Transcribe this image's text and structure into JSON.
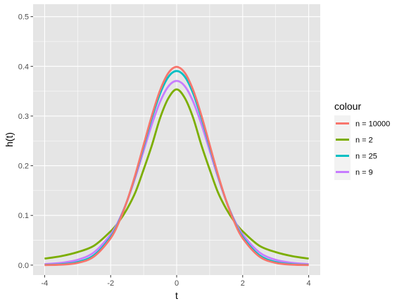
{
  "chart_data": {
    "type": "line",
    "title": "",
    "xlabel": "t",
    "ylabel": "h(t)",
    "xlim": [
      -4.35,
      4.35
    ],
    "ylim": [
      -0.02,
      0.525
    ],
    "x_ticks": [
      -4,
      -2,
      0,
      2,
      4
    ],
    "x_tick_labels": [
      "-4",
      "-2",
      "0",
      "2",
      "4"
    ],
    "y_ticks": [
      0.0,
      0.1,
      0.2,
      0.3,
      0.4,
      0.5
    ],
    "y_tick_labels": [
      "0.0",
      "0.1",
      "0.2",
      "0.3",
      "0.4",
      "0.5"
    ],
    "grid": true,
    "panel_background": "#e5e5e5",
    "grid_color": "#ffffff",
    "legend": {
      "title": "colour",
      "position": "right"
    },
    "x": [
      -4,
      -3.5,
      -3,
      -2.5,
      -2,
      -1.75,
      -1.5,
      -1.25,
      -1,
      -0.75,
      -0.5,
      -0.25,
      0,
      0.25,
      0.5,
      0.75,
      1,
      1.25,
      1.5,
      1.75,
      2,
      2.5,
      3,
      3.5,
      4
    ],
    "series": [
      {
        "name": "n = 10000",
        "color": "#f8766d",
        "values": [
          0.0001,
          0.0009,
          0.0044,
          0.0175,
          0.054,
          0.0863,
          0.1295,
          0.1826,
          0.242,
          0.3011,
          0.3521,
          0.3867,
          0.3989,
          0.3867,
          0.3521,
          0.3011,
          0.242,
          0.1826,
          0.1295,
          0.0863,
          0.054,
          0.0175,
          0.0044,
          0.0009,
          0.0001
        ]
      },
      {
        "name": "n = 2",
        "color": "#7cae00",
        "values": [
          0.0131,
          0.0181,
          0.0262,
          0.0392,
          0.068,
          0.0876,
          0.1134,
          0.1466,
          0.1925,
          0.2413,
          0.2963,
          0.3359,
          0.3536,
          0.3359,
          0.2963,
          0.2413,
          0.1925,
          0.1466,
          0.1134,
          0.0876,
          0.068,
          0.0392,
          0.0262,
          0.0181,
          0.0131
        ]
      },
      {
        "name": "n = 25",
        "color": "#00bfc4",
        "values": [
          0.0005,
          0.0018,
          0.0062,
          0.0201,
          0.0566,
          0.0877,
          0.1295,
          0.181,
          0.2387,
          0.2962,
          0.3455,
          0.3789,
          0.3906,
          0.3789,
          0.3455,
          0.2962,
          0.2387,
          0.181,
          0.1295,
          0.0877,
          0.0566,
          0.0201,
          0.0062,
          0.0018,
          0.0005
        ]
      },
      {
        "name": "n = 9",
        "color": "#c77cff",
        "values": [
          0.002,
          0.0046,
          0.0106,
          0.0259,
          0.0617,
          0.0905,
          0.1292,
          0.177,
          0.2303,
          0.2834,
          0.329,
          0.3598,
          0.3707,
          0.3598,
          0.329,
          0.2834,
          0.2303,
          0.177,
          0.1292,
          0.0905,
          0.0617,
          0.0259,
          0.0106,
          0.0046,
          0.002
        ]
      }
    ],
    "draw_order": [
      "n = 2",
      "n = 9",
      "n = 25",
      "n = 10000"
    ]
  }
}
